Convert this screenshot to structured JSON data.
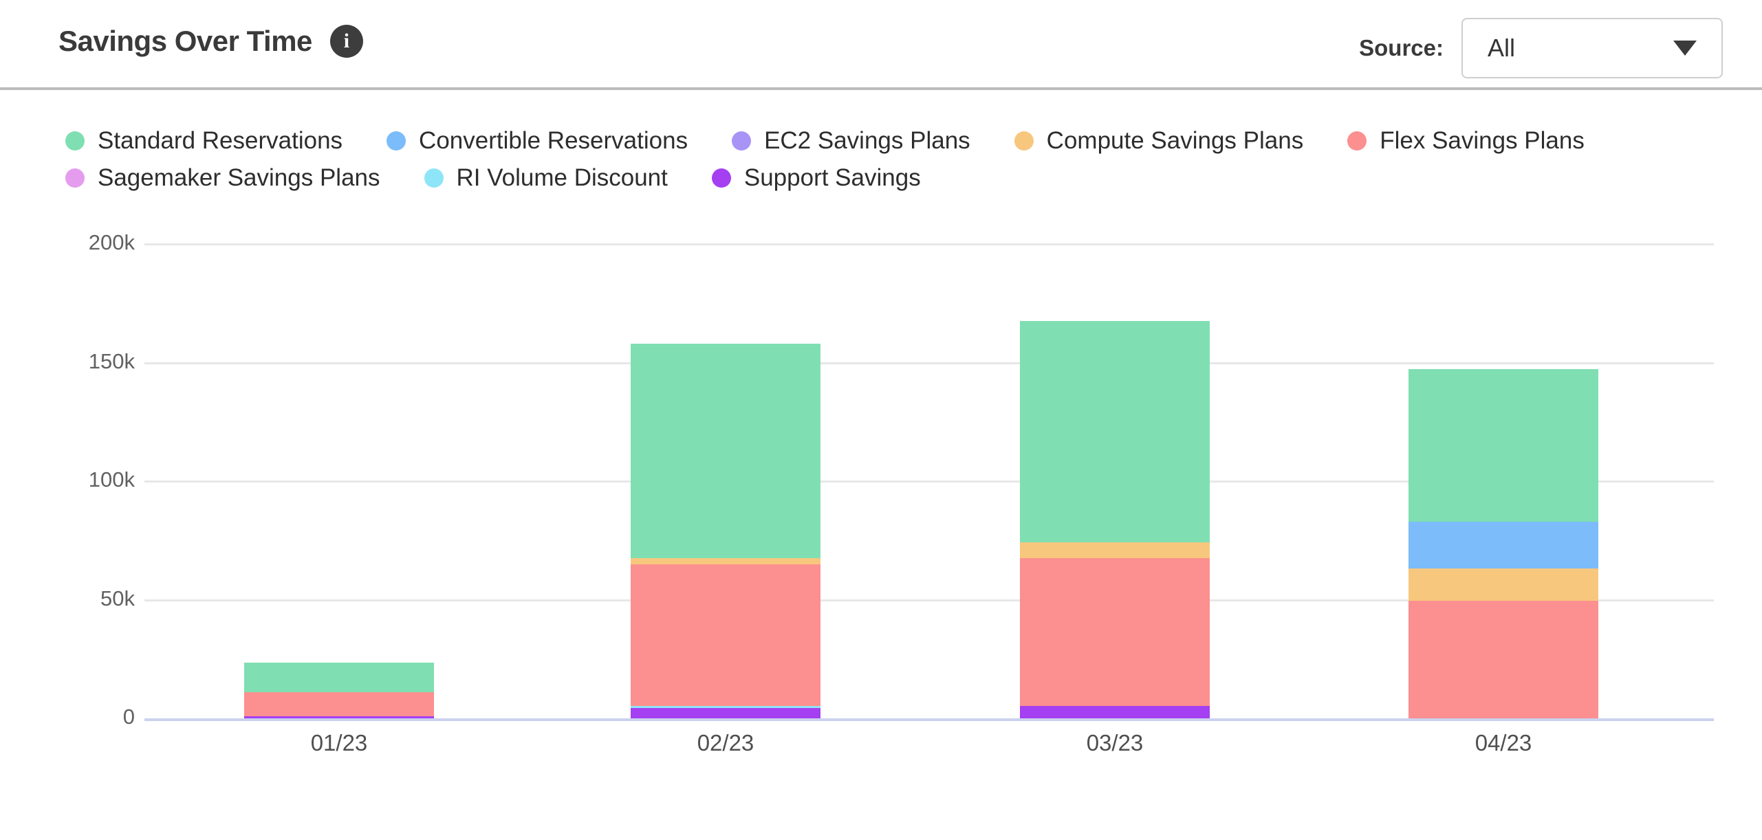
{
  "header": {
    "title": "Savings Over Time",
    "info_icon": "i",
    "source_label": "Source:",
    "source_value": "All"
  },
  "chart_data": {
    "type": "bar",
    "stacked": true,
    "title": "Savings Over Time",
    "unit": "thousands (k)",
    "categories": [
      "01/23",
      "02/23",
      "03/23",
      "04/23"
    ],
    "series": [
      {
        "name": "Standard Reservations",
        "color": "#7FDFB2",
        "values": [
          12.5,
          90.5,
          93.5,
          64.4
        ]
      },
      {
        "name": "Convertible Reservations",
        "color": "#7CBCFA",
        "values": [
          0,
          0,
          0,
          19.5
        ]
      },
      {
        "name": "EC2 Savings Plans",
        "color": "#A894F7",
        "values": [
          0,
          0,
          0,
          0
        ]
      },
      {
        "name": "Compute Savings Plans",
        "color": "#F8C77E",
        "values": [
          0,
          2.4,
          6.6,
          13.6
        ]
      },
      {
        "name": "Flex Savings Plans",
        "color": "#FC8F8F",
        "values": [
          10.1,
          59.7,
          62.2,
          49.7
        ]
      },
      {
        "name": "Sagemaker Savings Plans",
        "color": "#E59CEF",
        "values": [
          0,
          0,
          0,
          0
        ]
      },
      {
        "name": "RI Volume Discount",
        "color": "#8FE5F8",
        "values": [
          0,
          0.9,
          0,
          0
        ]
      },
      {
        "name": "Support Savings",
        "color": "#A43FF2",
        "values": [
          0.9,
          4.4,
          5.3,
          0
        ]
      }
    ],
    "stack_order_note": "top-to-bottom within a bar follows series order above",
    "legend_rows": [
      [
        0,
        1,
        2,
        3,
        4
      ],
      [
        5,
        6,
        7
      ]
    ],
    "legend_position": "top",
    "grid": true,
    "ylim": [
      0,
      200
    ],
    "y_axis": {
      "ticks": [
        {
          "label": "0",
          "value": 0
        },
        {
          "label": "50k",
          "value": 50
        },
        {
          "label": "100k",
          "value": 100
        },
        {
          "label": "150k",
          "value": 150
        },
        {
          "label": "200k",
          "value": 200
        }
      ]
    }
  },
  "colors": {
    "axis_line": "#CBD2EE",
    "gridline": "#E7E7E9",
    "tick_text": "#616161",
    "x_label_text": "#4F4F4F",
    "divider": "#BCBCBC",
    "title_text": "#3A3A3A",
    "legend_text": "#2D2D2D"
  }
}
